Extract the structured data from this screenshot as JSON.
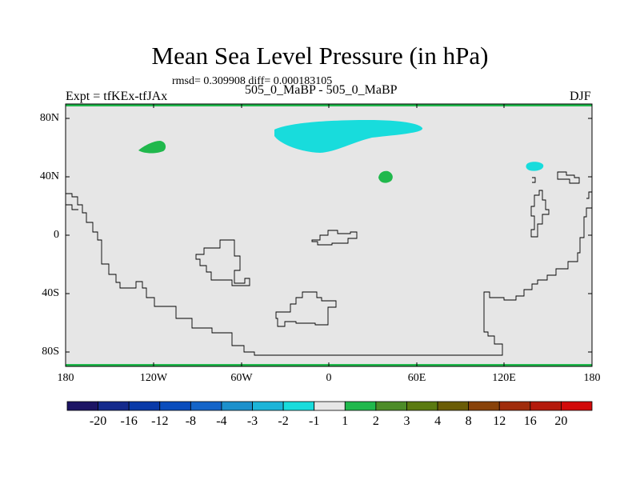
{
  "title": "Mean Sea Level Pressure (in hPa)",
  "stats_text": "rmsd= 0.309908 diff= 0.000183105",
  "expt_label": "Expt = tfKEx-tfJAx",
  "subtitle": "505_0_MaBP - 505_0_MaBP",
  "season": "DJF",
  "y_ticks": [
    "80N",
    "40N",
    "0",
    "40S",
    "80S"
  ],
  "x_ticks": [
    "180",
    "120W",
    "60W",
    "0",
    "60E",
    "120E",
    "180"
  ],
  "colorbar": {
    "labels": [
      "-20",
      "-16",
      "-12",
      "-8",
      "-4",
      "-3",
      "-2",
      "-1",
      "1",
      "2",
      "3",
      "4",
      "8",
      "12",
      "16",
      "20"
    ],
    "colors": [
      "#1c1464",
      "#142a8c",
      "#0a3aa8",
      "#0a4cbc",
      "#1464c8",
      "#1c90cc",
      "#1cb4d8",
      "#18dcdc",
      "#e6e6e6",
      "#20b84c",
      "#4c8c28",
      "#5a7a10",
      "#6a5c06",
      "#88420a",
      "#a02c0c",
      "#b41a0c",
      "#d20a0a"
    ]
  },
  "map_colors": {
    "background": "#e6e6e6",
    "cyan_anomaly": "#18dcdc",
    "green_anomaly": "#20b84c"
  }
}
